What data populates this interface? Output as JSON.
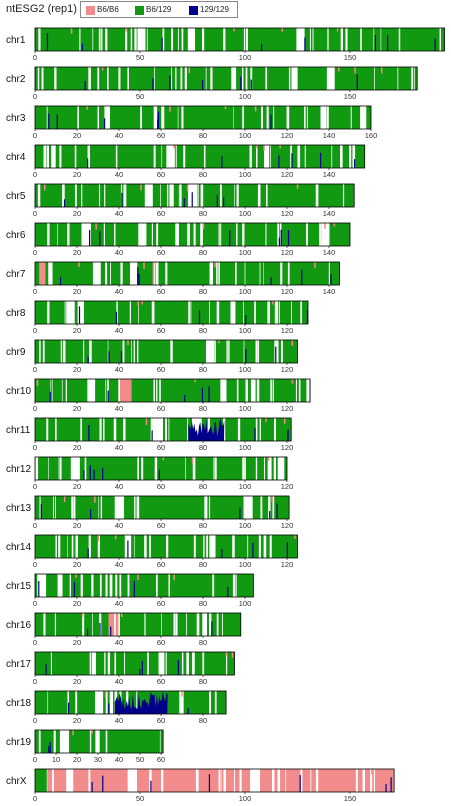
{
  "title": "ntESG2 (rep1)",
  "legend": [
    {
      "label": "B6/B6",
      "color": "#f28b8b"
    },
    {
      "label": "B6/129",
      "color": "#119911"
    },
    {
      "label": "129/129",
      "color": "#00008b"
    }
  ],
  "chart_data": {
    "type": "heatmap",
    "title": "ntESG2 (rep1)",
    "xlabel": "",
    "ylabel": "",
    "grid": false,
    "legend_placement": "top",
    "chromosomes": [
      {
        "name": "chr1",
        "length": 195,
        "ticks": [
          0,
          50,
          100,
          150
        ]
      },
      {
        "name": "chr2",
        "length": 182,
        "ticks": [
          0,
          50,
          100,
          150
        ]
      },
      {
        "name": "chr3",
        "length": 160,
        "ticks": [
          0,
          20,
          40,
          60,
          80,
          100,
          120,
          140,
          160
        ]
      },
      {
        "name": "chr4",
        "length": 157,
        "ticks": [
          0,
          20,
          40,
          60,
          80,
          100,
          120,
          140
        ]
      },
      {
        "name": "chr5",
        "length": 152,
        "ticks": [
          0,
          20,
          40,
          60,
          80,
          100,
          120,
          140
        ]
      },
      {
        "name": "chr6",
        "length": 150,
        "ticks": [
          0,
          20,
          40,
          60,
          80,
          100,
          120,
          140
        ]
      },
      {
        "name": "chr7",
        "length": 145,
        "ticks": [
          0,
          20,
          40,
          60,
          80,
          100,
          120,
          140
        ]
      },
      {
        "name": "chr8",
        "length": 130,
        "ticks": [
          0,
          20,
          40,
          60,
          80,
          100,
          120
        ]
      },
      {
        "name": "chr9",
        "length": 125,
        "ticks": [
          0,
          20,
          40,
          60,
          80,
          100,
          120
        ]
      },
      {
        "name": "chr10",
        "length": 131,
        "ticks": [
          0,
          20,
          40,
          60,
          80,
          100,
          120
        ]
      },
      {
        "name": "chr11",
        "length": 122,
        "ticks": [
          0,
          20,
          40,
          60,
          80,
          100,
          120
        ]
      },
      {
        "name": "chr12",
        "length": 120,
        "ticks": [
          0,
          20,
          40,
          60,
          80,
          100,
          120
        ]
      },
      {
        "name": "chr13",
        "length": 121,
        "ticks": [
          0,
          20,
          40,
          60,
          80,
          100,
          120
        ]
      },
      {
        "name": "chr14",
        "length": 125,
        "ticks": [
          0,
          20,
          40,
          60,
          80,
          100,
          120
        ]
      },
      {
        "name": "chr15",
        "length": 104,
        "ticks": [
          0,
          20,
          40,
          60,
          80,
          100
        ]
      },
      {
        "name": "chr16",
        "length": 98,
        "ticks": [
          0,
          20,
          40,
          60,
          80
        ]
      },
      {
        "name": "chr17",
        "length": 95,
        "ticks": [
          0,
          20,
          40,
          60,
          80
        ]
      },
      {
        "name": "chr18",
        "length": 91,
        "ticks": [
          0,
          20,
          40,
          60,
          80
        ]
      },
      {
        "name": "chr19",
        "length": 61,
        "ticks": [
          0,
          10,
          20,
          30,
          40,
          50,
          60
        ]
      },
      {
        "name": "chrX",
        "length": 171,
        "ticks": [
          0,
          50,
          100,
          150
        ]
      }
    ],
    "features": {
      "chr1": {
        "b6": [],
        "a129": []
      },
      "chr2": {
        "b6": [],
        "a129": []
      },
      "chr3": {
        "b6": [],
        "a129": []
      },
      "chr4": {
        "b6": [],
        "a129": []
      },
      "chr5": {
        "b6": [],
        "a129": []
      },
      "chr6": {
        "b6": [],
        "a129": []
      },
      "chr7": {
        "b6": [
          [
            2,
            5
          ],
          [
            56,
            58
          ]
        ],
        "a129": []
      },
      "chr8": {
        "b6": [],
        "a129": []
      },
      "chr9": {
        "b6": [],
        "a129": []
      },
      "chr10": {
        "b6": [
          [
            40,
            46
          ]
        ],
        "a129": []
      },
      "chr11": {
        "b6": [],
        "a129": [
          [
            73,
            90
          ]
        ]
      },
      "chr12": {
        "b6": [],
        "a129": []
      },
      "chr13": {
        "b6": [],
        "a129": []
      },
      "chr14": {
        "b6": [],
        "a129": []
      },
      "chr15": {
        "b6": [],
        "a129": []
      },
      "chr16": {
        "b6": [
          [
            35,
            40
          ]
        ],
        "a129": []
      },
      "chr17": {
        "b6": [],
        "a129": []
      },
      "chr18": {
        "b6": [],
        "a129": [
          [
            38,
            63
          ]
        ]
      },
      "chr19": {
        "b6": [],
        "a129": []
      },
      "chrX": {
        "b6": [
          [
            6,
            171
          ]
        ],
        "a129": []
      }
    }
  }
}
